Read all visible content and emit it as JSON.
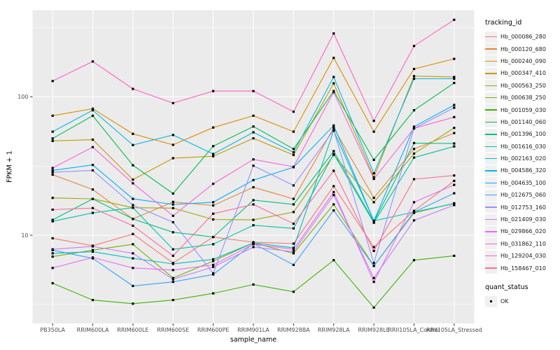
{
  "chart_data": {
    "type": "line",
    "title": "",
    "xlabel": "sample_name",
    "ylabel": "FPKM + 1",
    "y_scale": "log10",
    "ylim": [
      2.3,
      420
    ],
    "grid": true,
    "legend_position": "right",
    "y_ticks": [
      {
        "label": "100",
        "value": 100
      },
      {
        "label": "10",
        "value": 10
      }
    ],
    "y_minor_gridlines": [
      316.23,
      31.62,
      3.16
    ],
    "point_marker": "filled-square",
    "point_color": "#000000",
    "x_categories": [
      "PB350LA",
      "RRIM600LA",
      "RRIM600LE",
      "RRIM600SE",
      "RRIM600PE",
      "RRIM901LA",
      "RRIM928BA",
      "RRIM928LA",
      "RRIM928LE",
      "RRII105LA_Control",
      "RRII105LA_Stressed"
    ],
    "series": [
      {
        "name": "Hb_000086_280",
        "color": "#F8766D",
        "values": [
          9.5,
          8.4,
          10.2,
          6.3,
          9.7,
          8.9,
          8.7,
          22.6,
          8.2,
          15.0,
          24.7
        ]
      },
      {
        "name": "Hb_000120_680",
        "color": "#EA8331",
        "values": [
          27.4,
          21.4,
          13.1,
          17.4,
          16.4,
          22.2,
          18.3,
          59.6,
          18.6,
          42.0,
          54.7
        ]
      },
      {
        "name": "Hb_000240_090",
        "color": "#D89000",
        "values": [
          73,
          82,
          54,
          45,
          60,
          73,
          56,
          191,
          56,
          159,
          188
        ]
      },
      {
        "name": "Hb_000347_410",
        "color": "#C09B00",
        "values": [
          48,
          49,
          25.2,
          36,
          37.2,
          50.1,
          38,
          125,
          26.2,
          141,
          139
        ]
      },
      {
        "name": "Hb_000563_250",
        "color": "#A3A500",
        "values": [
          18.6,
          18.3,
          15.8,
          15.7,
          13.0,
          12.9,
          14.7,
          38,
          17.3,
          38.9,
          59.6
        ]
      },
      {
        "name": "Hb_000638_250",
        "color": "#7CAE00",
        "values": [
          7.0,
          7.8,
          8.6,
          4.9,
          6.5,
          8.8,
          7.4,
          16.7,
          6.0,
          14.5,
          17.0
        ]
      },
      {
        "name": "Hb_001059_030",
        "color": "#39B600",
        "values": [
          4.5,
          3.4,
          3.2,
          3.4,
          3.8,
          4.4,
          3.9,
          6.6,
          3.0,
          6.6,
          7.1
        ]
      },
      {
        "name": "Hb_001140_060",
        "color": "#00BB4E",
        "values": [
          50,
          73,
          32,
          20,
          44,
          61,
          42,
          110,
          35,
          80,
          126
        ]
      },
      {
        "name": "Hb_001396_100",
        "color": "#00BF7D",
        "values": [
          12.9,
          18.3,
          13.1,
          10.5,
          9.7,
          17.9,
          16.7,
          40.5,
          12.5,
          46.3,
          46
        ]
      },
      {
        "name": "Hb_001616_030",
        "color": "#00C1A3",
        "values": [
          12.6,
          14.5,
          15.8,
          7.9,
          8.6,
          11.8,
          11.2,
          38.6,
          12.3,
          36.4,
          43.8
        ]
      },
      {
        "name": "Hb_002163_020",
        "color": "#00BFC4",
        "values": [
          7.4,
          7.6,
          6.8,
          6.2,
          6.7,
          8.8,
          8.1,
          57,
          12.7,
          14.7,
          16.9
        ]
      },
      {
        "name": "Hb_004586_320",
        "color": "#00BAE0",
        "values": [
          56,
          80,
          44.8,
          53,
          38.6,
          55.4,
          39.7,
          139,
          28,
          135,
          135
        ]
      },
      {
        "name": "Hb_004635_100",
        "color": "#00B0F6",
        "values": [
          29.4,
          32.2,
          18.3,
          16.7,
          17.3,
          25,
          31,
          62,
          12.7,
          60.8,
          87.3
        ]
      },
      {
        "name": "Hb_012675_060",
        "color": "#35A2FF",
        "values": [
          7.8,
          6.8,
          4.3,
          4.6,
          5.2,
          8.7,
          6.1,
          15.1,
          6.0,
          14.7,
          20.1
        ]
      },
      {
        "name": "Hb_012753_160",
        "color": "#9590FF",
        "values": [
          28.5,
          29.4,
          16.5,
          12.4,
          5.3,
          31.8,
          22.9,
          57.3,
          6.3,
          59.0,
          83.4
        ]
      },
      {
        "name": "Hb_021409_030",
        "color": "#C77CFF",
        "values": [
          7.9,
          8.3,
          7.4,
          4.8,
          5.9,
          8.2,
          7.6,
          19.5,
          4.9,
          12.8,
          16.5
        ]
      },
      {
        "name": "Hb_029866_020",
        "color": "#E76BF3",
        "values": [
          5.8,
          6.9,
          5.8,
          5.6,
          6.1,
          8.6,
          7.9,
          20.5,
          4.6,
          17.3,
          23.1
        ]
      },
      {
        "name": "Hb_031862_110",
        "color": "#FA62DB",
        "values": [
          30.6,
          43.3,
          23.7,
          13.8,
          23.5,
          35.3,
          31.2,
          108,
          25.5,
          59.2,
          71.3
        ]
      },
      {
        "name": "Hb_129204_030",
        "color": "#FF61C3",
        "values": [
          130,
          180,
          114,
          90,
          110,
          110,
          78,
          287,
          67,
          233,
          360
        ]
      },
      {
        "name": "Hb_158467_010",
        "color": "#FF6A98",
        "values": [
          15.3,
          15.7,
          11.7,
          7.1,
          14.3,
          16.7,
          12.1,
          29.2,
          7.7,
          25.4,
          27
        ]
      }
    ]
  },
  "legend": {
    "color_title": "tracking_id",
    "shape_title": "quant_status",
    "shape_items": [
      {
        "label": "OK",
        "marker": "filled-square",
        "color": "#000000"
      }
    ]
  },
  "style_colors": {
    "panel_background": "#EBEBEB",
    "gridline": "#FFFFFF",
    "axis_text": "#4D4D4D",
    "tick_mark": "#333333",
    "legend_key_fill": "#F0F0F0"
  }
}
